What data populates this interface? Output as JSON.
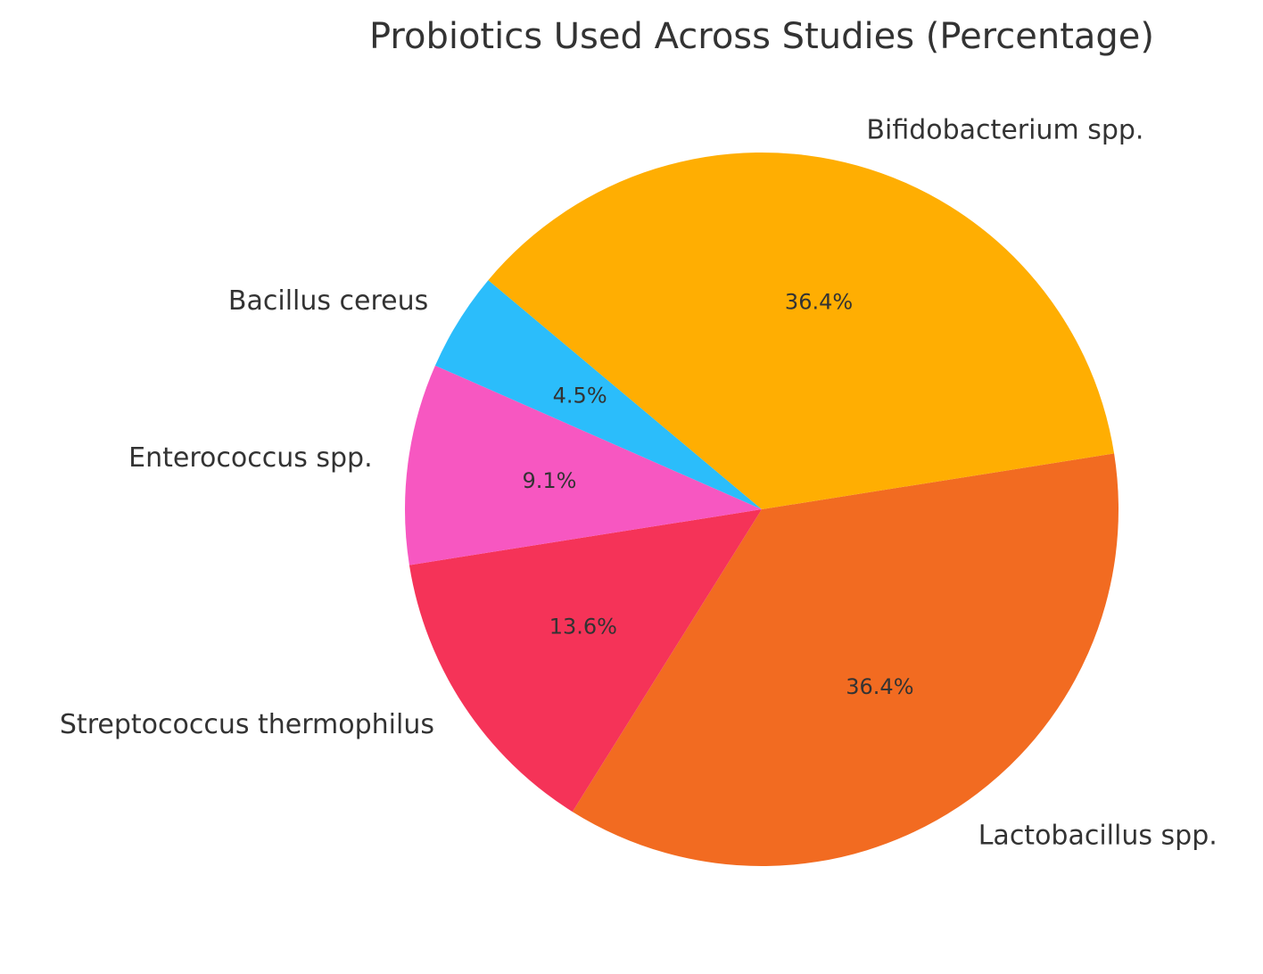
{
  "chart_data": {
    "type": "pie",
    "title": "Probiotics Used Across Studies (Percentage)",
    "start_angle_deg": -9,
    "direction": "clockwise",
    "slices": [
      {
        "label": "Lactobacillus spp.",
        "value": 36.4,
        "display": "36.4%",
        "color": "#F26B21"
      },
      {
        "label": "Streptococcus thermophilus",
        "value": 13.6,
        "display": "13.6%",
        "color": "#F53358"
      },
      {
        "label": "Enterococcus spp.",
        "value": 9.1,
        "display": "9.1%",
        "color": "#F757C1"
      },
      {
        "label": "Bacillus cereus",
        "value": 4.5,
        "display": "4.5%",
        "color": "#2BBDFB"
      },
      {
        "label": "Bifidobacterium spp.",
        "value": 36.4,
        "display": "36.4%",
        "color": "#FFAE02"
      }
    ]
  }
}
